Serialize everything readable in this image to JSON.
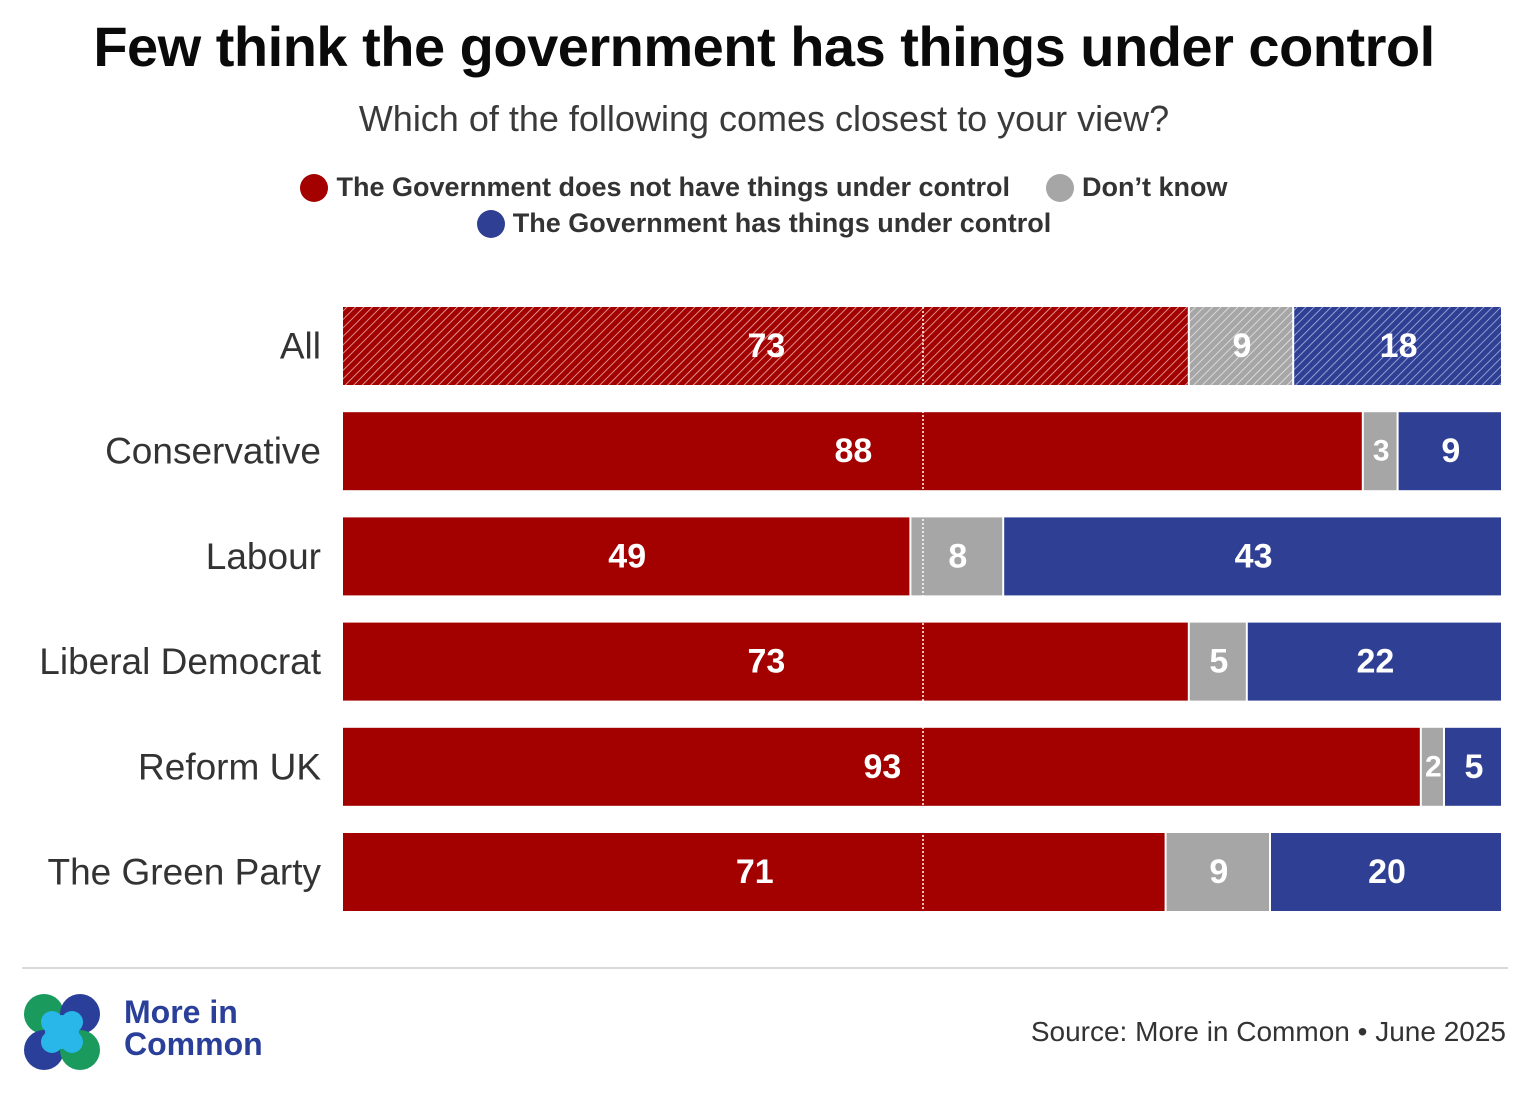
{
  "colors": {
    "not_control": "#a30000",
    "dont_know": "#a6a6a6",
    "has_control": "#2f3f93",
    "logo_green": "#1a9a5c",
    "logo_cyan": "#29b6e8",
    "logo_blue": "#2a3f9a"
  },
  "chart_data": {
    "type": "bar",
    "orientation": "horizontal",
    "stacked": true,
    "title": "Few think the government has things under control",
    "subtitle": "Which of the following comes closest to your view?",
    "categories": [
      "All",
      "Conservative",
      "Labour",
      "Liberal Democrat",
      "Reform UK",
      "The Green Party"
    ],
    "series": [
      {
        "name": "The Government does not have things under control",
        "values": [
          73,
          88,
          49,
          73,
          93,
          71
        ],
        "color": "#a30000"
      },
      {
        "name": "Don’t know",
        "values": [
          9,
          3,
          8,
          5,
          2,
          9
        ],
        "color": "#a6a6a6"
      },
      {
        "name": "The Government has things under control",
        "values": [
          18,
          9,
          43,
          22,
          5,
          20
        ],
        "color": "#2f3f93"
      }
    ],
    "xlim": [
      0,
      100
    ],
    "reference_line": 50,
    "hatched_categories": [
      "All"
    ],
    "legend_position": "top",
    "grid": false
  },
  "footer": {
    "logo_text_line1": "More in",
    "logo_text_line2": "Common",
    "source": "Source: More in Common • June 2025"
  }
}
